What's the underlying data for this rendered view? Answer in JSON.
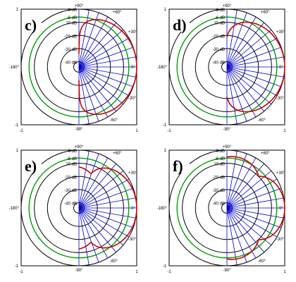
{
  "chart_data": [
    {
      "type": "polar",
      "panel_label": "c)",
      "radial_ticks": [
        "0 dB",
        "-6 dB",
        "10 dB",
        "-20 dB",
        "-30 dB",
        "-40 dB"
      ],
      "radial_levels": [
        0,
        -6,
        -10,
        -20,
        -30,
        -40
      ],
      "angle_ticks": [
        "+90°",
        "+60°",
        "+30°",
        "0°",
        "-30°",
        "-60°",
        "-90°",
        "-180°"
      ],
      "corner_ticks": [
        "1",
        "-1",
        "-1",
        "1"
      ],
      "highlight_level": -6,
      "ray_angles_deg": [
        90,
        80,
        70,
        60,
        50,
        40,
        30,
        20,
        10,
        0,
        -10,
        -20,
        -30,
        -40,
        -50,
        -60,
        -70,
        -80,
        -90
      ],
      "pattern": {
        "lobes": 1,
        "peak_dB": 0,
        "width": 1.0
      },
      "colors": {
        "level_rings": "#000000",
        "highlight_ring": "#00a000",
        "rays": "#0000cc",
        "pattern": "#cc0000"
      }
    },
    {
      "type": "polar",
      "panel_label": "d)",
      "radial_ticks": [
        "0 dB",
        "-6 dB",
        "10 dB",
        "-20 dB",
        "-30 dB",
        "-40 dB"
      ],
      "radial_levels": [
        0,
        -6,
        -10,
        -20,
        -30,
        -40
      ],
      "angle_ticks": [
        "+90°",
        "+60°",
        "+30°",
        "0°",
        "-30°",
        "-60°",
        "-90°",
        "-180°"
      ],
      "corner_ticks": [
        "1",
        "-1",
        "-1",
        "1"
      ],
      "highlight_level": -6,
      "ray_angles_deg": [
        90,
        80,
        70,
        60,
        50,
        40,
        30,
        20,
        10,
        0,
        -10,
        -20,
        -30,
        -40,
        -50,
        -60,
        -70,
        -80,
        -90
      ],
      "pattern": {
        "lobes": 2,
        "peak_dB": 0,
        "width": 0.9
      },
      "colors": {
        "level_rings": "#000000",
        "highlight_ring": "#00a000",
        "rays": "#0000cc",
        "pattern": "#cc0000"
      }
    },
    {
      "type": "polar",
      "panel_label": "e)",
      "radial_ticks": [
        "0 dB",
        "-6 dB",
        "10 dB",
        "-20 dB",
        "-30 dB",
        "-40 dB"
      ],
      "radial_levels": [
        0,
        -6,
        -10,
        -20,
        -30,
        -40
      ],
      "angle_ticks": [
        "+90°",
        "+60°",
        "+30°",
        "0°",
        "-30°",
        "-60°",
        "-90°",
        "-180°"
      ],
      "corner_ticks": [
        "1",
        "-1",
        "-1",
        "1"
      ],
      "highlight_level": -6,
      "ray_angles_deg": [
        90,
        80,
        70,
        60,
        50,
        40,
        30,
        20,
        10,
        0,
        -10,
        -20,
        -30,
        -40,
        -50,
        -60,
        -70,
        -80,
        -90
      ],
      "pattern": {
        "lobes": 3,
        "peak_dB": 0,
        "width": 0.85
      },
      "colors": {
        "level_rings": "#000000",
        "highlight_ring": "#00a000",
        "rays": "#0000cc",
        "pattern": "#cc0000"
      }
    },
    {
      "type": "polar",
      "panel_label": "f)",
      "radial_ticks": [
        "0 dB",
        "-6 dB",
        "10 dB",
        "-20 dB",
        "-30 dB",
        "-40 dB"
      ],
      "radial_levels": [
        0,
        -6,
        -10,
        -20,
        -30,
        -40
      ],
      "angle_ticks": [
        "+90°",
        "+60°",
        "+30°",
        "0°",
        "-30°",
        "-60°",
        "-90°",
        "-180°"
      ],
      "corner_ticks": [
        "1",
        "-1",
        "-1",
        "1"
      ],
      "highlight_level": -6,
      "ray_angles_deg": [
        90,
        80,
        70,
        60,
        50,
        40,
        30,
        20,
        10,
        0,
        -10,
        -20,
        -30,
        -40,
        -50,
        -60,
        -70,
        -80,
        -90
      ],
      "pattern": {
        "lobes": 5,
        "peak_dB": 0,
        "width": 0.8
      },
      "colors": {
        "level_rings": "#000000",
        "highlight_ring": "#00a000",
        "rays": "#0000cc",
        "pattern": "#cc0000"
      }
    }
  ]
}
